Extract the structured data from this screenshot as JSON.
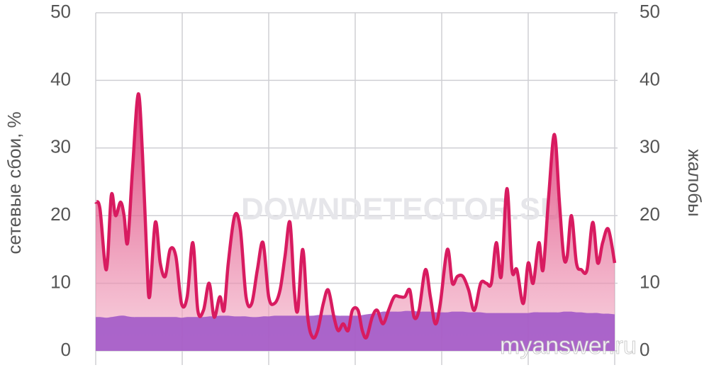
{
  "chart_data": {
    "type": "area",
    "y_label": "сетевые сбои, %",
    "y2_label": "жалобы",
    "watermarks": [
      "DOWNDETECTOR.SU",
      "myanswer.ru"
    ],
    "xlim": [
      0,
      732
    ],
    "ylim": [
      0,
      50
    ],
    "yticks": [
      0,
      10,
      20,
      30,
      40,
      50
    ],
    "y2lim": [
      0,
      50
    ],
    "y2ticks": [
      0,
      10,
      20,
      30,
      40,
      50
    ],
    "grid": true,
    "x": [
      0,
      6,
      15,
      22,
      28,
      35,
      40,
      45,
      52,
      60,
      66,
      72,
      76,
      84,
      91,
      98,
      105,
      113,
      121,
      129,
      137,
      144,
      152,
      160,
      167,
      175,
      181,
      187,
      196,
      204,
      212,
      220,
      228,
      236,
      244,
      252,
      260,
      267,
      274,
      280,
      285,
      292,
      299,
      306,
      313,
      321,
      328,
      336,
      342,
      349,
      356,
      362,
      370,
      376,
      382,
      390,
      397,
      405,
      413,
      421,
      429,
      436,
      443,
      449,
      456,
      465,
      472,
      479,
      486,
      496,
      503,
      510,
      518,
      526,
      534,
      543,
      551,
      558,
      565,
      572,
      580,
      587,
      594,
      603,
      610,
      617,
      625,
      631,
      639,
      647,
      654,
      660,
      665,
      671,
      678,
      685,
      693,
      701,
      708,
      715,
      723,
      732
    ],
    "series": [
      {
        "color": "#d81b60",
        "values": [
          22,
          21,
          12,
          23,
          20,
          22,
          20,
          16,
          27,
          38,
          29,
          14,
          8,
          19,
          13,
          11,
          15,
          14,
          7,
          8,
          16,
          6,
          6,
          10,
          5,
          8,
          6,
          13,
          20,
          18,
          8,
          7,
          12,
          16,
          8,
          7,
          9,
          14,
          19,
          9,
          6,
          15,
          5,
          2,
          3,
          7,
          9,
          5,
          3,
          4,
          3,
          6,
          6,
          3,
          2,
          5,
          6,
          4,
          6,
          8,
          8,
          8,
          9,
          5,
          6,
          12,
          8,
          4,
          7,
          15,
          10,
          11,
          11,
          9,
          6,
          10,
          10,
          10,
          16,
          11,
          24,
          12,
          12,
          7,
          13,
          10,
          16,
          12,
          23,
          32,
          22,
          14,
          14,
          20,
          13,
          12,
          12,
          19,
          13,
          16,
          18,
          13
        ]
      },
      {
        "color": "#a259c8",
        "values": [
          5,
          5,
          4.9,
          5,
          5.1,
          5.2,
          5.2,
          5.1,
          5,
          5,
          5,
          5,
          5,
          5,
          5,
          5,
          5,
          5,
          4.9,
          5,
          5,
          5,
          5,
          5.1,
          5.1,
          5.2,
          5.2,
          5.2,
          5.1,
          5.1,
          5.1,
          5,
          5,
          5.1,
          5.1,
          5.2,
          5.2,
          5.2,
          5.2,
          5.2,
          5.2,
          5.2,
          5.2,
          5.2,
          5.3,
          5.3,
          5.3,
          5.3,
          5.2,
          5.2,
          5.2,
          5.2,
          5.2,
          5.3,
          5.4,
          5.5,
          5.6,
          5.8,
          5.8,
          5.8,
          5.8,
          5.9,
          5.9,
          5.9,
          5.8,
          5.8,
          5.8,
          5.7,
          5.7,
          5.7,
          5.8,
          5.8,
          5.8,
          5.7,
          5.7,
          5.7,
          5.6,
          5.6,
          5.6,
          5.6,
          5.6,
          5.6,
          5.6,
          5.6,
          5.6,
          5.7,
          5.7,
          5.7,
          5.7,
          5.7,
          5.7,
          5.8,
          5.8,
          5.8,
          5.7,
          5.7,
          5.6,
          5.6,
          5.6,
          5.5,
          5.5,
          5.4
        ]
      }
    ]
  }
}
